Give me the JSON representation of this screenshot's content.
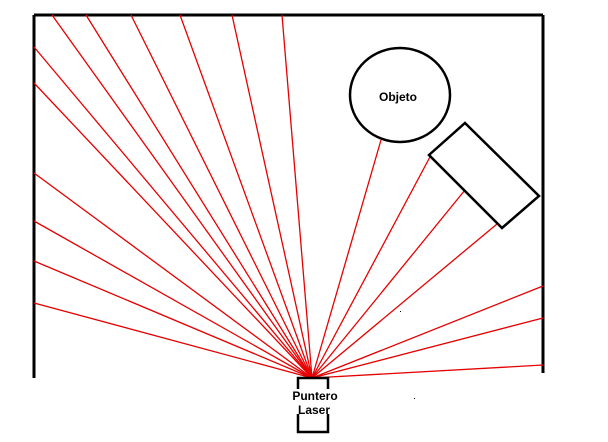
{
  "labels": {
    "object": "Objeto",
    "laser_line1": "Puntero",
    "laser_line2": "Laser"
  },
  "colors": {
    "beam": "#e60000",
    "outline": "#000000",
    "background": "#ffffff"
  }
}
